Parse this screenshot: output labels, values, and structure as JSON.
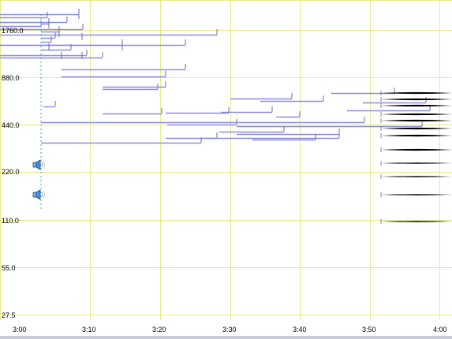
{
  "y_axis": {
    "ticks": [
      "1760.0",
      "880.0",
      "440.0",
      "220.0",
      "110.0",
      "55.0",
      "27.5"
    ]
  },
  "x_axis": {
    "ticks": [
      "3:00",
      "3:10",
      "3:20",
      "3:30",
      "3:40",
      "3:50",
      "4:00"
    ]
  },
  "icons": [
    "speaker-icon",
    "speaker-icon"
  ],
  "colors": {
    "grid": "#e9e98a",
    "note_line": "#8c8ce0",
    "note_tick": "#6b6bb5",
    "dark_notes": "#000000",
    "cursor": "#33aacc",
    "background": "#ffffff"
  }
}
